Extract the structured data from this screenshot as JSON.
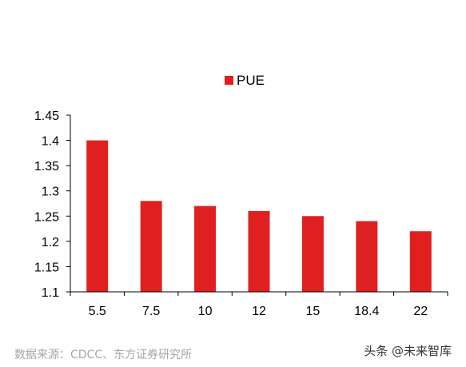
{
  "chart_data": {
    "type": "bar",
    "categories": [
      "5.5",
      "7.5",
      "10",
      "12",
      "15",
      "18.4",
      "22"
    ],
    "series": [
      {
        "name": "PUE",
        "values": [
          1.4,
          1.28,
          1.27,
          1.26,
          1.25,
          1.24,
          1.22
        ]
      }
    ],
    "ylim": [
      1.1,
      1.45
    ],
    "yticks": [
      "1.45",
      "1.4",
      "1.35",
      "1.3",
      "1.25",
      "1.2",
      "1.15",
      "1.1"
    ],
    "grid": false,
    "legend": "top-center",
    "bar_color": "#e02020"
  },
  "source_note": "数据来源：CDCC、东方证券研究所",
  "watermark": "头条 @未来智库"
}
